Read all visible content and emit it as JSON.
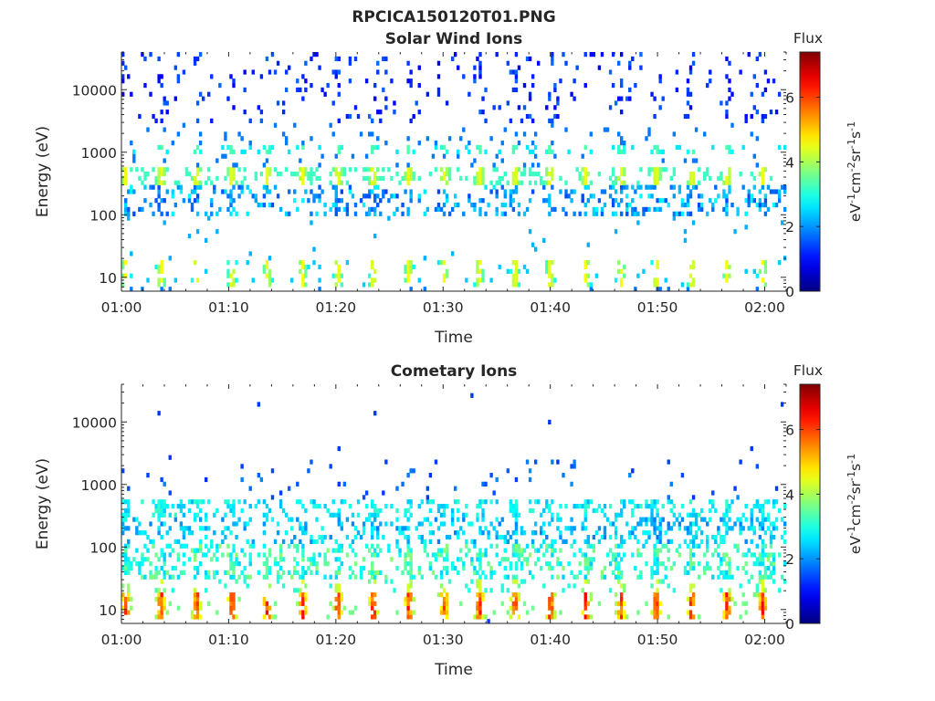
{
  "chart_data": {
    "title": "RPCICA150120T01.PNG",
    "panels": [
      {
        "type": "heatmap",
        "title": "Solar Wind Ions",
        "xlabel": "Time",
        "ylabel": "Energy (eV)",
        "x_ticks": [
          "01:00",
          "01:10",
          "01:20",
          "01:30",
          "01:40",
          "01:50",
          "02:00"
        ],
        "x_range_minutes": [
          0,
          62
        ],
        "y_scale": "log",
        "y_range": [
          6,
          40000
        ],
        "y_ticks": [
          {
            "value": 10,
            "label": "10"
          },
          {
            "value": 100,
            "label": "100"
          },
          {
            "value": 1000,
            "label": "1000"
          },
          {
            "value": 10000,
            "label": "10000"
          }
        ],
        "colorbar": {
          "title": "Flux",
          "label_parts": [
            "eV",
            "-1",
            "cm",
            "-2",
            "sr",
            "-1",
            "s",
            "-1"
          ],
          "range": [
            0,
            7.4
          ],
          "ticks": [
            "0",
            "2",
            "4",
            "6"
          ],
          "colormap": "jet"
        },
        "features": [
          {
            "energy_range": [
              300,
              600
            ],
            "intensity": 4.0,
            "note": "main solar wind band, bursts every ~3.3 min"
          },
          {
            "energy_range": [
              900,
              1300
            ],
            "intensity": 3.0,
            "note": "secondary band"
          },
          {
            "energy_range": [
              100,
              300
            ],
            "intensity": 2.2,
            "note": "scattered low-intensity pixels, stronger after 01:45"
          },
          {
            "energy_range": [
              7,
              20
            ],
            "intensity": 3.2,
            "note": "low-energy vertical streaks"
          },
          {
            "energy_range": [
              3000,
              40000
            ],
            "intensity": 1.3,
            "note": "sparse high-energy noise"
          }
        ]
      },
      {
        "type": "heatmap",
        "title": "Cometary Ions",
        "xlabel": "Time",
        "ylabel": "Energy (eV)",
        "x_ticks": [
          "01:00",
          "01:10",
          "01:20",
          "01:30",
          "01:40",
          "01:50",
          "02:00"
        ],
        "x_range_minutes": [
          0,
          62
        ],
        "y_scale": "log",
        "y_range": [
          6,
          40000
        ],
        "y_ticks": [
          {
            "value": 10,
            "label": "10"
          },
          {
            "value": 100,
            "label": "100"
          },
          {
            "value": 1000,
            "label": "1000"
          },
          {
            "value": 10000,
            "label": "10000"
          }
        ],
        "colorbar": {
          "title": "Flux",
          "label_parts": [
            "eV",
            "-1",
            "cm",
            "-2",
            "sr",
            "-1",
            "s",
            "-1"
          ],
          "range": [
            0,
            7.4
          ],
          "ticks": [
            "0",
            "2",
            "4",
            "6"
          ],
          "colormap": "jet"
        },
        "features": [
          {
            "energy_range": [
              7,
              20
            ],
            "intensity": 5.5,
            "note": "strong low-energy bursts every ~3.3 min, up to ~6.5"
          },
          {
            "energy_range": [
              30,
              120
            ],
            "intensity": 3.2,
            "note": "broad mid-energy population"
          },
          {
            "energy_range": [
              300,
              600
            ],
            "intensity": 2.6,
            "note": "band near 400 eV"
          },
          {
            "energy_range": [
              800,
              2500
            ],
            "intensity": 1.5,
            "note": "sparse"
          }
        ]
      }
    ]
  }
}
